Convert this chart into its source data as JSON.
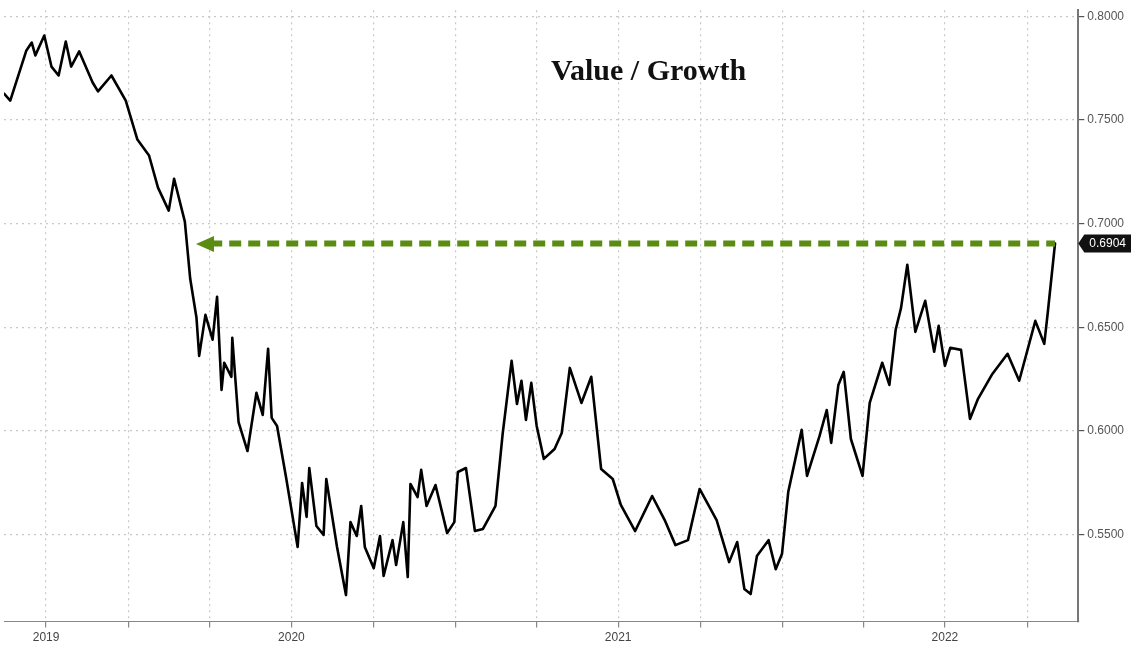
{
  "chart_data": {
    "type": "line",
    "title": "Value / Growth",
    "x": [
      "2019-08-15",
      "2019-08-22",
      "2019-09-09",
      "2019-09-15",
      "2019-09-19",
      "2019-09-29",
      "2019-10-07",
      "2019-10-15",
      "2019-10-23",
      "2019-10-29",
      "2019-11-07",
      "2019-11-22",
      "2019-11-28",
      "2019-12-13",
      "2019-12-29",
      "2020-01-11",
      "2020-01-24",
      "2020-02-03",
      "2020-02-15",
      "2020-02-21",
      "2020-03-04",
      "2020-03-10",
      "2020-03-17",
      "2020-03-20",
      "2020-03-27",
      "2020-04-04",
      "2020-04-09",
      "2020-04-14",
      "2020-04-17",
      "2020-04-25",
      "2020-04-26",
      "2020-05-03",
      "2020-05-13",
      "2020-05-23",
      "2020-05-30",
      "2020-06-05",
      "2020-06-09",
      "2020-06-15",
      "2020-06-25",
      "2020-07-08",
      "2020-07-13",
      "2020-07-18",
      "2020-07-21",
      "2020-07-29",
      "2020-08-06",
      "2020-08-09",
      "2020-08-21",
      "2020-08-31",
      "2020-09-05",
      "2020-09-12",
      "2020-09-17",
      "2020-09-21",
      "2020-10-01",
      "2020-10-08",
      "2020-10-12",
      "2020-10-22",
      "2020-10-26",
      "2020-11-03",
      "2020-11-08",
      "2020-11-11",
      "2020-11-19",
      "2020-11-23",
      "2020-11-29",
      "2020-12-09",
      "2020-12-22",
      "2020-12-30",
      "2021-01-03",
      "2021-01-12",
      "2021-01-22",
      "2021-01-31",
      "2021-02-14",
      "2021-02-22",
      "2021-03-04",
      "2021-03-10",
      "2021-03-15",
      "2021-03-20",
      "2021-03-26",
      "2021-04-01",
      "2021-04-09",
      "2021-04-21",
      "2021-04-29",
      "2021-05-08",
      "2021-05-21",
      "2021-06-01",
      "2021-06-12",
      "2021-06-25",
      "2021-07-04",
      "2021-07-20",
      "2021-08-08",
      "2021-08-22",
      "2021-09-03",
      "2021-09-17",
      "2021-09-30",
      "2021-10-19",
      "2021-11-02",
      "2021-11-11",
      "2021-11-19",
      "2021-11-26",
      "2021-12-03",
      "2021-12-16",
      "2021-12-24",
      "2021-12-31",
      "2022-01-07",
      "2022-01-22",
      "2022-01-28",
      "2022-02-11",
      "2022-02-19",
      "2022-02-24",
      "2022-03-04",
      "2022-03-10",
      "2022-03-18",
      "2022-03-31",
      "2022-04-08",
      "2022-04-22",
      "2022-04-30",
      "2022-05-07",
      "2022-05-13",
      "2022-05-20",
      "2022-05-29",
      "2022-06-09",
      "2022-06-19",
      "2022-06-24",
      "2022-07-01",
      "2022-07-07",
      "2022-07-19",
      "2022-07-29",
      "2022-08-07",
      "2022-08-23",
      "2022-09-09",
      "2022-09-22",
      "2022-10-10",
      "2022-10-20",
      "2022-10-24",
      "2022-11-01"
    ],
    "series": [
      {
        "color": "#000000",
        "values": [
          0.7628,
          0.7594,
          0.7836,
          0.7874,
          0.7812,
          0.7908,
          0.7758,
          0.7715,
          0.7879,
          0.7758,
          0.7831,
          0.7681,
          0.7638,
          0.7715,
          0.7594,
          0.7406,
          0.7329,
          0.7174,
          0.7063,
          0.7217,
          0.701,
          0.6734,
          0.6546,
          0.6362,
          0.656,
          0.644,
          0.6647,
          0.6198,
          0.6329,
          0.6261,
          0.6449,
          0.6043,
          0.5903,
          0.6184,
          0.6077,
          0.6396,
          0.6063,
          0.6024,
          0.5778,
          0.544,
          0.5749,
          0.5585,
          0.5821,
          0.5541,
          0.5498,
          0.5768,
          0.544,
          0.5208,
          0.556,
          0.5493,
          0.5638,
          0.544,
          0.5338,
          0.5493,
          0.53,
          0.5473,
          0.5353,
          0.556,
          0.5295,
          0.5744,
          0.5681,
          0.5812,
          0.5638,
          0.5739,
          0.5507,
          0.556,
          0.5802,
          0.5821,
          0.5517,
          0.5527,
          0.5638,
          0.5986,
          0.6338,
          0.613,
          0.6242,
          0.6053,
          0.6232,
          0.6024,
          0.5865,
          0.5913,
          0.599,
          0.6304,
          0.6135,
          0.6261,
          0.5816,
          0.5768,
          0.5643,
          0.5517,
          0.5686,
          0.557,
          0.5449,
          0.5473,
          0.572,
          0.557,
          0.5367,
          0.5464,
          0.5237,
          0.5213,
          0.5396,
          0.5473,
          0.5333,
          0.5406,
          0.5705,
          0.6005,
          0.5783,
          0.5976,
          0.6101,
          0.5942,
          0.6222,
          0.6285,
          0.5961,
          0.5783,
          0.6135,
          0.6329,
          0.6222,
          0.6488,
          0.6594,
          0.6802,
          0.6478,
          0.6628,
          0.6382,
          0.6507,
          0.6314,
          0.6401,
          0.6391,
          0.6058,
          0.6155,
          0.6275,
          0.6372,
          0.6242,
          0.6531,
          0.642,
          0.6575,
          0.6904
        ]
      }
    ],
    "xlim": [
      "2019-08-15",
      "2022-11-27"
    ],
    "xticks": [
      {
        "value": "2019-10-01",
        "label": "2019"
      },
      {
        "value": "2020-01-01",
        "label": null
      },
      {
        "value": "2020-04-01",
        "label": null
      },
      {
        "value": "2020-07-01",
        "label": "2020"
      },
      {
        "value": "2020-10-01",
        "label": null
      },
      {
        "value": "2021-01-01",
        "label": null
      },
      {
        "value": "2021-04-01",
        "label": null
      },
      {
        "value": "2021-07-01",
        "label": "2021"
      },
      {
        "value": "2021-10-01",
        "label": null
      },
      {
        "value": "2022-01-01",
        "label": null
      },
      {
        "value": "2022-04-01",
        "label": null
      },
      {
        "value": "2022-07-01",
        "label": "2022"
      },
      {
        "value": "2022-10-01",
        "label": null
      }
    ],
    "ylim": [
      0.508,
      0.803
    ],
    "yticks": [
      {
        "value": 0.55,
        "label": "0.5500"
      },
      {
        "value": 0.6,
        "label": "0.6000"
      },
      {
        "value": 0.65,
        "label": "0.6500"
      },
      {
        "value": 0.7,
        "label": "0.7000"
      },
      {
        "value": 0.75,
        "label": "0.7500"
      },
      {
        "value": 0.8,
        "label": "0.8000"
      }
    ],
    "ref_lines": [
      {
        "axis": "y",
        "value": 0.6904,
        "label": "0.6904",
        "color": "#5a8c12",
        "line_style": "dashed"
      }
    ],
    "grid": true,
    "legend": false,
    "marker": "none",
    "line_style": "solid"
  }
}
